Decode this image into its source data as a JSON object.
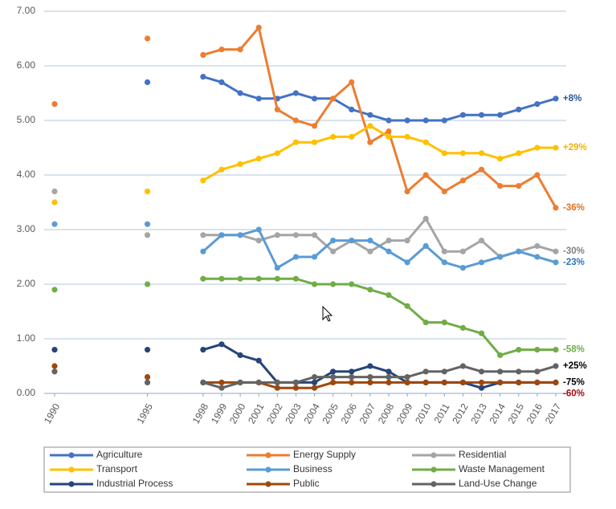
{
  "chart_data": {
    "type": "line",
    "x": [
      1990,
      1995,
      1998,
      1999,
      2000,
      2001,
      2002,
      2003,
      2004,
      2005,
      2006,
      2007,
      2008,
      2009,
      2010,
      2011,
      2012,
      2013,
      2014,
      2015,
      2016,
      2017
    ],
    "xlim": [
      1990,
      2017
    ],
    "xticks": [
      1990,
      1995,
      1998,
      1999,
      2000,
      2001,
      2002,
      2003,
      2004,
      2005,
      2006,
      2007,
      2008,
      2009,
      2010,
      2011,
      2012,
      2013,
      2014,
      2015,
      2016,
      2017
    ],
    "ylim": [
      0,
      7
    ],
    "yticks": [
      {
        "value": 0,
        "label": "0.00"
      },
      {
        "value": 1,
        "label": "1.00"
      },
      {
        "value": 2,
        "label": "2.00"
      },
      {
        "value": 3,
        "label": "3.00"
      },
      {
        "value": 4,
        "label": "4.00"
      },
      {
        "value": 5,
        "label": "5.00"
      },
      {
        "value": 6,
        "label": "6.00"
      },
      {
        "value": 7,
        "label": "7.00"
      }
    ],
    "grid": true,
    "legend": "bottom",
    "series": [
      {
        "name": "Agriculture",
        "color": "#4472c4",
        "end_label": "+8%",
        "end_label_color": "#2f5597",
        "values": [
          null,
          5.7,
          5.8,
          5.7,
          5.5,
          5.4,
          5.4,
          5.5,
          5.4,
          5.4,
          5.2,
          5.1,
          5.0,
          5.0,
          5.0,
          5.0,
          5.1,
          5.1,
          5.1,
          5.2,
          5.3,
          5.4
        ]
      },
      {
        "name": "Energy Supply",
        "color": "#ed7d31",
        "end_label": "-36%",
        "end_label_color": "#e07020",
        "values": [
          5.3,
          6.5,
          6.2,
          6.3,
          6.3,
          6.7,
          5.2,
          5.0,
          4.9,
          5.4,
          5.7,
          4.6,
          4.8,
          3.7,
          4.0,
          3.7,
          3.9,
          4.1,
          3.8,
          3.8,
          4.0,
          3.4
        ]
      },
      {
        "name": "Residential",
        "color": "#a5a5a5",
        "end_label": "-30%",
        "end_label_color": "#7f7f7f",
        "values": [
          3.7,
          2.9,
          2.9,
          2.9,
          2.9,
          2.8,
          2.9,
          2.9,
          2.9,
          2.6,
          2.8,
          2.6,
          2.8,
          2.8,
          3.2,
          2.6,
          2.6,
          2.8,
          2.5,
          2.6,
          2.7,
          2.6
        ]
      },
      {
        "name": "Transport",
        "color": "#ffc000",
        "end_label": "+29%",
        "end_label_color": "#f0b400",
        "values": [
          3.5,
          3.7,
          3.9,
          4.1,
          4.2,
          4.3,
          4.4,
          4.6,
          4.6,
          4.7,
          4.7,
          4.9,
          4.7,
          4.7,
          4.6,
          4.4,
          4.4,
          4.4,
          4.3,
          4.4,
          4.5,
          4.5
        ]
      },
      {
        "name": "Business",
        "color": "#5b9bd5",
        "end_label": "-23%",
        "end_label_color": "#2e75b6",
        "values": [
          3.1,
          3.1,
          2.6,
          2.9,
          2.9,
          3.0,
          2.3,
          2.5,
          2.5,
          2.8,
          2.8,
          2.8,
          2.6,
          2.4,
          2.7,
          2.4,
          2.3,
          2.4,
          2.5,
          2.6,
          2.5,
          2.4
        ]
      },
      {
        "name": "Waste Management",
        "color": "#70ad47",
        "end_label": "-58%",
        "end_label_color": "#70ad47",
        "values": [
          1.9,
          2.0,
          2.1,
          2.1,
          2.1,
          2.1,
          2.1,
          2.1,
          2.0,
          2.0,
          2.0,
          1.9,
          1.8,
          1.6,
          1.3,
          1.3,
          1.2,
          1.1,
          0.7,
          0.8,
          0.8,
          0.8
        ]
      },
      {
        "name": "Industrial Process",
        "color": "#264478",
        "end_label": "-75%",
        "end_label_color": "#000000",
        "values": [
          0.8,
          0.8,
          0.8,
          0.9,
          0.7,
          0.6,
          0.2,
          0.2,
          0.2,
          0.4,
          0.4,
          0.5,
          0.4,
          0.2,
          0.2,
          0.2,
          0.2,
          0.1,
          0.2,
          0.2,
          0.2,
          0.2
        ]
      },
      {
        "name": "Public",
        "color": "#9e480e",
        "end_label": "-60%",
        "end_label_color": "#9e0b0b",
        "values": [
          0.5,
          0.3,
          0.2,
          0.2,
          0.2,
          0.2,
          0.1,
          0.1,
          0.1,
          0.2,
          0.2,
          0.2,
          0.2,
          0.2,
          0.2,
          0.2,
          0.2,
          0.2,
          0.2,
          0.2,
          0.2,
          0.2
        ]
      },
      {
        "name": "Land-Use Change",
        "color": "#636363",
        "end_label": "+25%",
        "end_label_color": "#000000",
        "values": [
          0.4,
          0.2,
          0.2,
          0.1,
          0.2,
          0.2,
          0.2,
          0.2,
          0.3,
          0.3,
          0.3,
          0.3,
          0.3,
          0.3,
          0.4,
          0.4,
          0.5,
          0.4,
          0.4,
          0.4,
          0.4,
          0.5
        ]
      }
    ]
  }
}
